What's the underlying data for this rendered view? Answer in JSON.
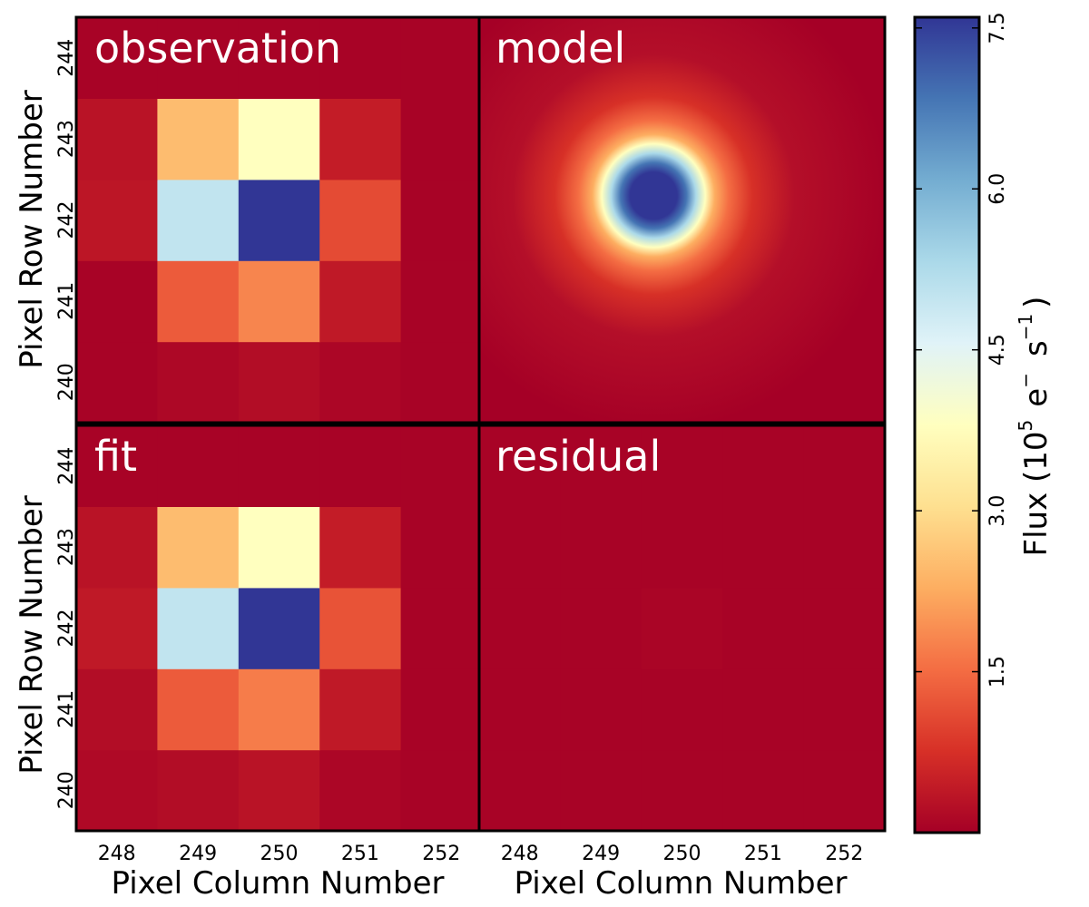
{
  "chart_data": {
    "type": "heatmap",
    "colormap": "RdYlBu",
    "colormap_stops": [
      "#a50026",
      "#d73027",
      "#f46d43",
      "#fdae61",
      "#fee090",
      "#ffffbf",
      "#e0f3f8",
      "#abd9e9",
      "#74add1",
      "#4575b4",
      "#313695"
    ],
    "x": [
      248,
      249,
      250,
      251,
      252
    ],
    "y": [
      240,
      241,
      242,
      243,
      244
    ],
    "xlabel": "Pixel Column Number",
    "ylabel": "Pixel Row Number",
    "panels": [
      {
        "title": "observation",
        "values": [
          [
            0.05,
            0.12,
            0.2,
            0.1,
            0.05
          ],
          [
            0.05,
            1.3,
            1.8,
            0.4,
            0.05
          ],
          [
            0.35,
            5.0,
            7.6,
            1.1,
            0.05
          ],
          [
            0.3,
            2.5,
            3.8,
            0.45,
            0.05
          ],
          [
            0.05,
            0.05,
            0.05,
            0.05,
            0.05
          ]
        ]
      },
      {
        "title": "model",
        "continuous": true,
        "center": [
          249.65,
          242.05
        ],
        "peak": 7.6
      },
      {
        "title": "fit",
        "values": [
          [
            0.15,
            0.2,
            0.3,
            0.1,
            0.05
          ],
          [
            0.2,
            1.3,
            1.7,
            0.4,
            0.05
          ],
          [
            0.4,
            5.0,
            7.6,
            1.2,
            0.05
          ],
          [
            0.3,
            2.5,
            3.8,
            0.45,
            0.05
          ],
          [
            0.05,
            0.05,
            0.05,
            0.05,
            0.05
          ]
        ]
      },
      {
        "title": "residual",
        "values": [
          [
            0.05,
            0.05,
            0.05,
            0.05,
            0.05
          ],
          [
            0.05,
            0.05,
            0.05,
            0.05,
            0.05
          ],
          [
            0.05,
            0.05,
            0.08,
            0.05,
            0.05
          ],
          [
            0.05,
            0.05,
            0.05,
            0.05,
            0.05
          ],
          [
            0.05,
            0.05,
            0.05,
            0.05,
            0.05
          ]
        ]
      }
    ],
    "colorbar": {
      "label_main": "Flux (10",
      "label_exp": "5",
      "label_unit": "e",
      "label_unit_sup": "−",
      "label_s": "s",
      "label_s_sup": "−1",
      "label_close": ")",
      "ticks": [
        1.5,
        3.0,
        4.5,
        6.0,
        7.5
      ],
      "tick_labels": [
        "1.5",
        "3.0",
        "4.5",
        "6.0",
        "7.5"
      ],
      "vmin": 0.0,
      "vmax": 7.6
    }
  }
}
